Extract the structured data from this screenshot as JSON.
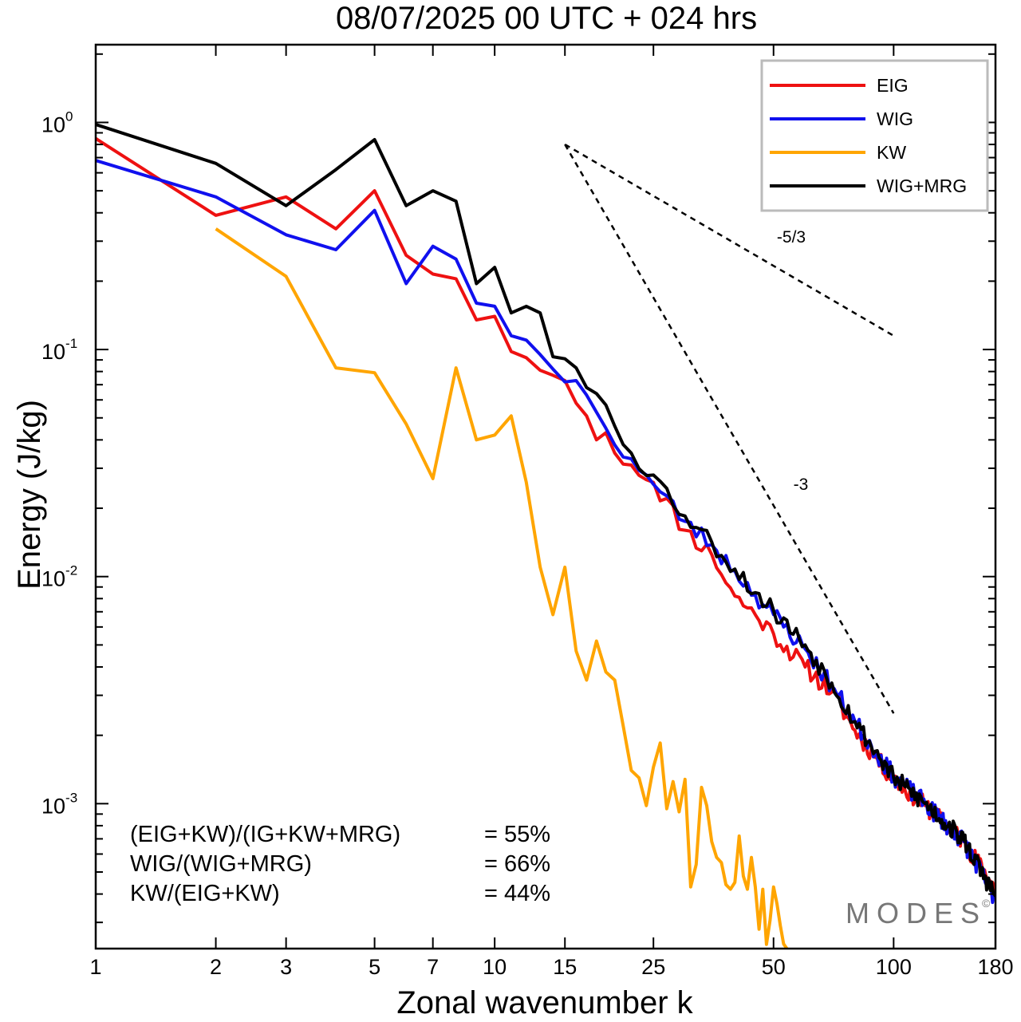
{
  "colors": {
    "EIG": "#ee1111",
    "WIG": "#1010ee",
    "KW": "#ffa500",
    "WIG+MRG": "#000000",
    "axis": "#000000",
    "legend_border": "#bbbbbb",
    "watermark": "#777777"
  },
  "chart_data": {
    "type": "line",
    "title": "08/07/2025  00 UTC  + 024 hrs",
    "xlabel": "Zonal wavenumber k",
    "ylabel": "Energy (J/kg)",
    "xscale": "log",
    "yscale": "log",
    "xlim": [
      1,
      180
    ],
    "ylim": [
      0.00023,
      2.2
    ],
    "grid": false,
    "legend_position": "top-right",
    "x_ticks": [
      1,
      2,
      3,
      5,
      7,
      10,
      15,
      25,
      50,
      100,
      180
    ],
    "y_ticks": [
      {
        "value": 1,
        "base": "10",
        "exp": "0"
      },
      {
        "value": 0.1,
        "base": "10",
        "exp": "-1"
      },
      {
        "value": 0.01,
        "base": "10",
        "exp": "-2"
      },
      {
        "value": 0.001,
        "base": "10",
        "exp": "-3"
      }
    ],
    "series": [
      {
        "name": "EIG",
        "color_key": "EIG",
        "anchors": [
          [
            1,
            0.85
          ],
          [
            2,
            0.39
          ],
          [
            3,
            0.47
          ],
          [
            4,
            0.34
          ],
          [
            5,
            0.5
          ],
          [
            6,
            0.26
          ],
          [
            7,
            0.215
          ],
          [
            8,
            0.205
          ],
          [
            9,
            0.135
          ],
          [
            10,
            0.14
          ],
          [
            11,
            0.098
          ],
          [
            12,
            0.092
          ],
          [
            13,
            0.081
          ],
          [
            14,
            0.077
          ],
          [
            15,
            0.073
          ],
          [
            16,
            0.058
          ],
          [
            17,
            0.051
          ],
          [
            18,
            0.04
          ],
          [
            19,
            0.043
          ],
          [
            20,
            0.035
          ],
          [
            22,
            0.031
          ],
          [
            25,
            0.026
          ],
          [
            30,
            0.016
          ],
          [
            35,
            0.0125
          ],
          [
            40,
            0.0082
          ],
          [
            45,
            0.0068
          ],
          [
            50,
            0.0056
          ],
          [
            60,
            0.004
          ],
          [
            70,
            0.0031
          ],
          [
            80,
            0.0021
          ],
          [
            90,
            0.0016
          ],
          [
            100,
            0.00128
          ],
          [
            120,
            0.00098
          ],
          [
            150,
            0.00068
          ],
          [
            180,
            0.00042
          ]
        ]
      },
      {
        "name": "WIG",
        "color_key": "WIG",
        "anchors": [
          [
            1,
            0.68
          ],
          [
            2,
            0.47
          ],
          [
            3,
            0.32
          ],
          [
            4,
            0.275
          ],
          [
            5,
            0.41
          ],
          [
            6,
            0.195
          ],
          [
            7,
            0.285
          ],
          [
            8,
            0.25
          ],
          [
            9,
            0.16
          ],
          [
            10,
            0.155
          ],
          [
            11,
            0.115
          ],
          [
            12,
            0.11
          ],
          [
            13,
            0.095
          ],
          [
            14,
            0.082
          ],
          [
            15,
            0.072
          ],
          [
            16,
            0.073
          ],
          [
            17,
            0.063
          ],
          [
            18,
            0.053
          ],
          [
            19,
            0.045
          ],
          [
            20,
            0.038
          ],
          [
            22,
            0.033
          ],
          [
            25,
            0.0255
          ],
          [
            30,
            0.0175
          ],
          [
            35,
            0.0138
          ],
          [
            40,
            0.0106
          ],
          [
            45,
            0.0083
          ],
          [
            50,
            0.0068
          ],
          [
            60,
            0.0048
          ],
          [
            70,
            0.0033
          ],
          [
            80,
            0.0023
          ],
          [
            90,
            0.0017
          ],
          [
            100,
            0.00132
          ],
          [
            120,
            0.001
          ],
          [
            150,
            0.00068
          ],
          [
            180,
            0.00038
          ]
        ]
      },
      {
        "name": "KW",
        "color_key": "KW",
        "anchors": [
          [
            2,
            0.34
          ],
          [
            3,
            0.21
          ],
          [
            4,
            0.083
          ],
          [
            5,
            0.079
          ],
          [
            6,
            0.047
          ],
          [
            7,
            0.027
          ],
          [
            8,
            0.083
          ],
          [
            9,
            0.04
          ],
          [
            10,
            0.042
          ],
          [
            11,
            0.051
          ],
          [
            12,
            0.026
          ],
          [
            13,
            0.011
          ],
          [
            14,
            0.0068
          ],
          [
            15,
            0.011
          ],
          [
            16,
            0.0047
          ],
          [
            17,
            0.0035
          ],
          [
            18,
            0.0052
          ],
          [
            19,
            0.0038
          ],
          [
            20,
            0.0035
          ],
          [
            21,
            0.0022
          ],
          [
            22,
            0.0014
          ],
          [
            23,
            0.0013
          ],
          [
            24,
            0.00098
          ],
          [
            25,
            0.00145
          ],
          [
            26,
            0.00185
          ],
          [
            27,
            0.00095
          ],
          [
            28,
            0.00125
          ],
          [
            29,
            0.00092
          ],
          [
            30,
            0.00128
          ],
          [
            31,
            0.00043
          ],
          [
            32,
            0.00054
          ],
          [
            33,
            0.00118
          ],
          [
            34,
            0.00098
          ],
          [
            35,
            0.00068
          ],
          [
            36,
            0.00058
          ],
          [
            37,
            0.00055
          ],
          [
            38,
            0.00044
          ],
          [
            39,
            0.00042
          ],
          [
            40,
            0.00045
          ],
          [
            41,
            0.00072
          ],
          [
            42,
            0.00048
          ],
          [
            43,
            0.00042
          ],
          [
            44,
            0.00058
          ],
          [
            45,
            0.00043
          ],
          [
            46,
            0.00028
          ],
          [
            47,
            0.00042
          ],
          [
            48,
            0.00024
          ],
          [
            50,
            0.00043
          ],
          [
            52,
            0.00029
          ],
          [
            54,
            0.00023
          ],
          [
            56,
            0.00023
          ]
        ]
      },
      {
        "name": "WIG+MRG",
        "color_key": "WIG+MRG",
        "anchors": [
          [
            1,
            0.98
          ],
          [
            2,
            0.66
          ],
          [
            3,
            0.43
          ],
          [
            4,
            0.62
          ],
          [
            5,
            0.84
          ],
          [
            6,
            0.43
          ],
          [
            7,
            0.5
          ],
          [
            8,
            0.45
          ],
          [
            9,
            0.195
          ],
          [
            10,
            0.23
          ],
          [
            11,
            0.145
          ],
          [
            12,
            0.155
          ],
          [
            13,
            0.145
          ],
          [
            14,
            0.093
          ],
          [
            15,
            0.091
          ],
          [
            16,
            0.083
          ],
          [
            17,
            0.068
          ],
          [
            18,
            0.064
          ],
          [
            19,
            0.057
          ],
          [
            20,
            0.046
          ],
          [
            22,
            0.035
          ],
          [
            25,
            0.028
          ],
          [
            30,
            0.0185
          ],
          [
            35,
            0.0142
          ],
          [
            40,
            0.0108
          ],
          [
            45,
            0.0085
          ],
          [
            50,
            0.0071
          ],
          [
            60,
            0.005
          ],
          [
            70,
            0.0034
          ],
          [
            80,
            0.0023
          ],
          [
            90,
            0.0017
          ],
          [
            100,
            0.0013
          ],
          [
            120,
            0.001
          ],
          [
            150,
            0.00069
          ],
          [
            180,
            0.00039
          ]
        ]
      }
    ],
    "reference_lines": [
      {
        "label": "-5/3",
        "start": [
          15,
          0.8
        ],
        "end": [
          100,
          0.115
        ]
      },
      {
        "label": "-3",
        "start": [
          15,
          0.8
        ],
        "end": [
          100,
          0.0025
        ]
      }
    ],
    "annotations": [
      {
        "label": "(EIG+KW)/(IG+KW+MRG)",
        "value": "= 55%"
      },
      {
        "label": "WIG/(WIG+MRG)",
        "value": "= 66%"
      },
      {
        "label": "KW/(EIG+KW)",
        "value": "= 44%"
      }
    ],
    "watermark": "MODES",
    "watermark_mark": "©"
  }
}
